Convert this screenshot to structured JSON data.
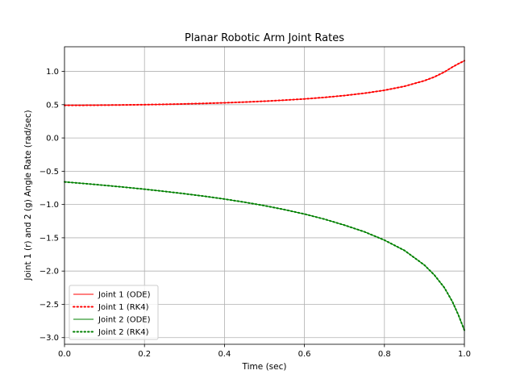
{
  "chart_data": {
    "type": "line",
    "title": "Planar Robotic Arm Joint Rates",
    "xlabel": "Time (sec)",
    "ylabel": "Joint 1 (r) and 2 (g) Angle Rate (rad/sec)",
    "xlim": [
      0.0,
      1.0
    ],
    "ylim": [
      -3.1,
      1.37
    ],
    "xticks": [
      0.0,
      0.2,
      0.4,
      0.6,
      0.8,
      1.0
    ],
    "xtick_labels": [
      "0.0",
      "0.2",
      "0.4",
      "0.6",
      "0.8",
      "1.0"
    ],
    "yticks": [
      1.0,
      0.5,
      0.0,
      -0.5,
      -1.0,
      -1.5,
      -2.0,
      -2.5,
      -3.0
    ],
    "ytick_labels": [
      "1.0",
      "0.5",
      "0.0",
      "−0.5",
      "−1.0",
      "−1.5",
      "−2.0",
      "−2.5",
      "−3.0"
    ],
    "grid": true,
    "legend_position": "lower-left",
    "x": [
      0.0,
      0.05,
      0.1,
      0.15,
      0.2,
      0.25,
      0.3,
      0.35,
      0.4,
      0.45,
      0.5,
      0.55,
      0.6,
      0.65,
      0.7,
      0.75,
      0.8,
      0.85,
      0.9,
      0.925,
      0.95,
      0.97,
      0.985,
      1.0
    ],
    "series": [
      {
        "name": "Joint 1 (ODE)",
        "color": "#ff0000",
        "style": "solid",
        "values": [
          0.49,
          0.491,
          0.493,
          0.496,
          0.5,
          0.505,
          0.511,
          0.519,
          0.528,
          0.539,
          0.552,
          0.568,
          0.586,
          0.609,
          0.637,
          0.672,
          0.716,
          0.776,
          0.86,
          0.917,
          0.991,
          1.065,
          1.115,
          1.16
        ]
      },
      {
        "name": "Joint 1 (RK4)",
        "color": "#ff0000",
        "style": "dotted",
        "values": [
          0.49,
          0.491,
          0.493,
          0.496,
          0.5,
          0.505,
          0.511,
          0.519,
          0.528,
          0.539,
          0.552,
          0.568,
          0.586,
          0.609,
          0.637,
          0.672,
          0.716,
          0.776,
          0.86,
          0.917,
          0.991,
          1.065,
          1.115,
          1.16
        ]
      },
      {
        "name": "Joint 2 (ODE)",
        "color": "#008000",
        "style": "solid",
        "values": [
          -0.66,
          -0.685,
          -0.712,
          -0.74,
          -0.77,
          -0.803,
          -0.838,
          -0.876,
          -0.918,
          -0.965,
          -1.017,
          -1.077,
          -1.143,
          -1.22,
          -1.31,
          -1.41,
          -1.535,
          -1.69,
          -1.91,
          -2.06,
          -2.25,
          -2.46,
          -2.66,
          -2.89
        ]
      },
      {
        "name": "Joint 2 (RK4)",
        "color": "#008000",
        "style": "dotted",
        "values": [
          -0.66,
          -0.685,
          -0.712,
          -0.74,
          -0.77,
          -0.803,
          -0.838,
          -0.876,
          -0.918,
          -0.965,
          -1.017,
          -1.077,
          -1.143,
          -1.22,
          -1.31,
          -1.41,
          -1.535,
          -1.69,
          -1.91,
          -2.06,
          -2.25,
          -2.46,
          -2.66,
          -2.89
        ]
      }
    ]
  }
}
